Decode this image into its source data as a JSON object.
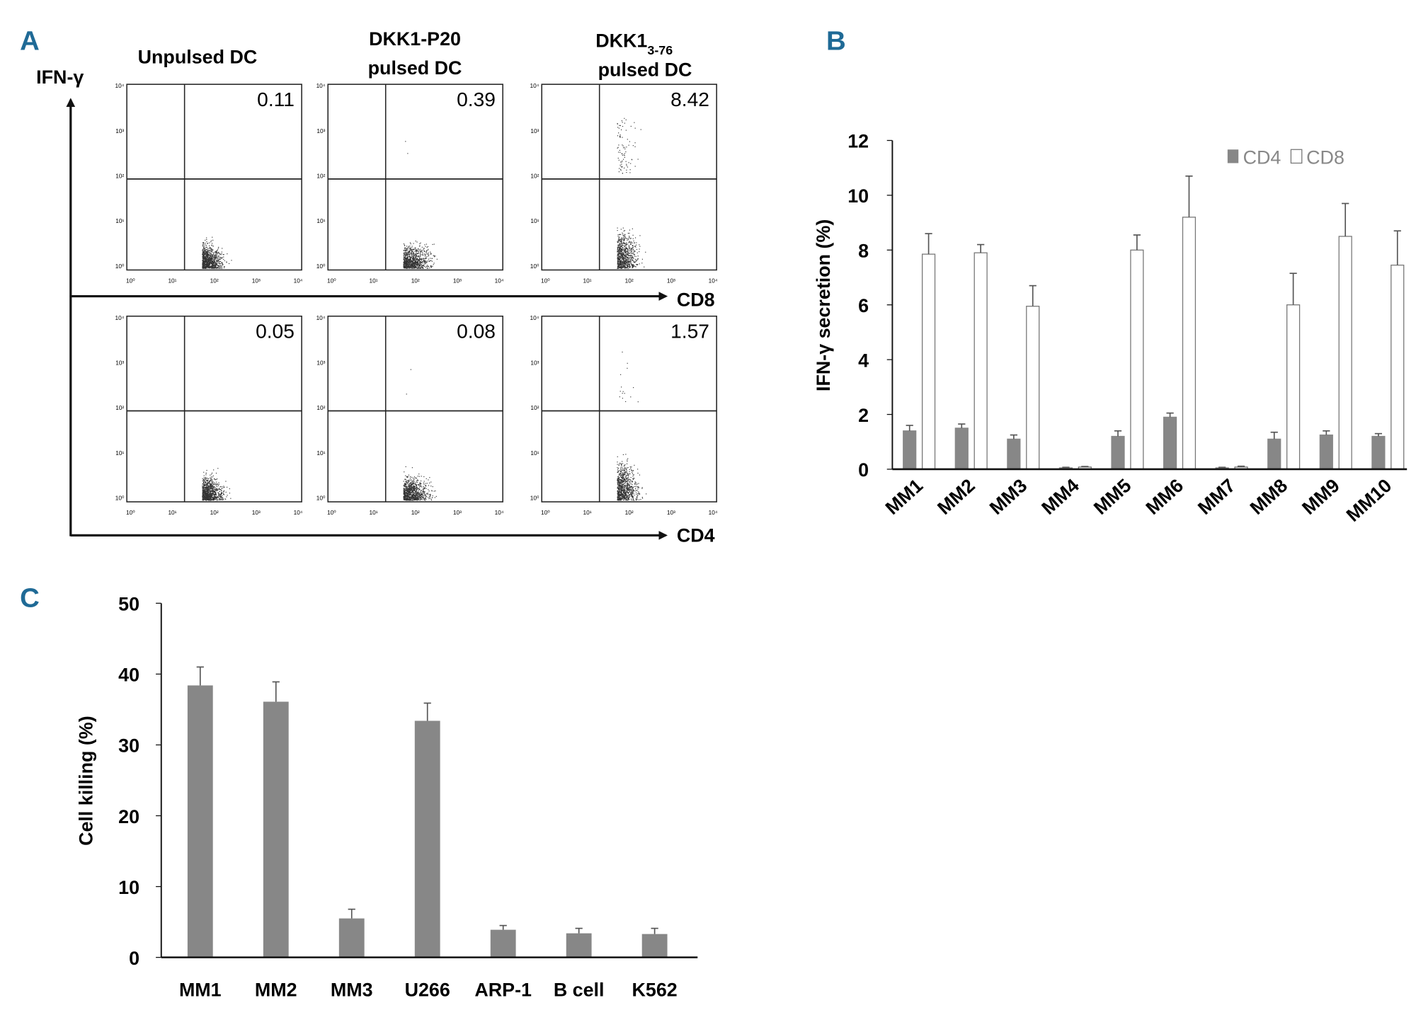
{
  "panel_labels": {
    "a": "A",
    "b": "B",
    "c": "C"
  },
  "panel_a": {
    "column_titles": [
      {
        "line1": "Unpulsed DC",
        "line2": ""
      },
      {
        "line1": "DKK1-P20",
        "line2": "pulsed DC"
      },
      {
        "line1": "DKK1",
        "sub": "3-76",
        "line2": "pulsed DC"
      }
    ],
    "y_axis_label": "IFN-γ",
    "row_axis_labels": [
      "CD8",
      "CD4"
    ],
    "axis_ticks": [
      "10⁰",
      "10¹",
      "10²",
      "10³",
      "10⁴"
    ],
    "quadrant_values": [
      [
        "0.11",
        "0.39",
        "8.42"
      ],
      [
        "0.05",
        "0.08",
        "1.57"
      ]
    ]
  },
  "chart_data": [
    {
      "type": "bar",
      "panel": "B",
      "ylabel": "IFN-γ secretion (%)",
      "categories": [
        "MM1",
        "MM2",
        "MM3",
        "MM4",
        "MM5",
        "MM6",
        "MM7",
        "MM8",
        "MM9",
        "MM10"
      ],
      "ylim": [
        0,
        12
      ],
      "yticks": [
        "0",
        "2",
        "4",
        "6",
        "8",
        "10",
        "12"
      ],
      "legend_position": "top-right",
      "series": [
        {
          "name": "CD4",
          "color": "#878787",
          "values": [
            1.4,
            1.5,
            1.1,
            0.05,
            1.2,
            1.9,
            0.05,
            1.1,
            1.25,
            1.2
          ],
          "errors": [
            0.2,
            0.15,
            0.15,
            0.02,
            0.2,
            0.15,
            0.02,
            0.25,
            0.15,
            0.1
          ]
        },
        {
          "name": "CD8",
          "color": "#ffffff",
          "values": [
            7.85,
            7.9,
            5.95,
            0.08,
            8.0,
            9.2,
            0.08,
            6.0,
            8.5,
            7.45
          ],
          "errors": [
            0.75,
            0.3,
            0.75,
            0.02,
            0.55,
            1.5,
            0.03,
            1.15,
            1.2,
            1.25
          ]
        }
      ]
    },
    {
      "type": "bar",
      "panel": "C",
      "ylabel": "Cell killing (%)",
      "categories": [
        "MM1",
        "MM2",
        "MM3",
        "U266",
        "ARP-1",
        "B cell",
        "K562"
      ],
      "ylim": [
        0,
        50
      ],
      "yticks": [
        "0",
        "10",
        "20",
        "30",
        "40",
        "50"
      ],
      "color": "#878787",
      "values": [
        38.4,
        36.1,
        5.5,
        33.4,
        3.9,
        3.4,
        3.3
      ],
      "errors": [
        2.6,
        2.8,
        1.3,
        2.5,
        0.6,
        0.7,
        0.8
      ]
    }
  ]
}
